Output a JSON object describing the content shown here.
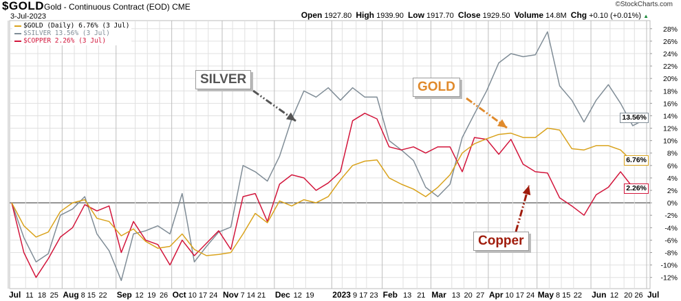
{
  "header": {
    "symbol": "$GOLD",
    "description": "Gold - Continuous Contract (EOD) CME",
    "date": "3-Jul-2023",
    "credit": "©StockCharts.com",
    "open_label": "Open",
    "open": "1927.80",
    "high_label": "High",
    "high": "1939.90",
    "low_label": "Low",
    "low": "1917.70",
    "close_label": "Close",
    "close": "1929.50",
    "volume_label": "Volume",
    "volume": "14.8M",
    "chg_label": "Chg",
    "chg": "+0.10 (+0.01%)",
    "chg_icon": "triangle-up-icon"
  },
  "legend": [
    {
      "text": "$GOLD (Daily) 6.76% (3 Jul)",
      "color": "#d9a21b"
    },
    {
      "text": "$SILVER 13.56% (3 Jul)",
      "color": "#7f8c96"
    },
    {
      "text": "$COPPER 2.26% (3 Jul)",
      "color": "#d2143a"
    }
  ],
  "annotations": {
    "silver": {
      "text": "SILVER",
      "color": "#555555"
    },
    "gold": {
      "text": "GOLD",
      "color": "#e08a2c"
    },
    "copper": {
      "text": "Copper",
      "color": "#a01c0c"
    }
  },
  "chart_data": {
    "type": "line",
    "title": "$GOLD Gold - Continuous Contract (EOD) CME",
    "xlim": [
      "2022-07-03",
      "2023-07-03"
    ],
    "ylim": [
      -13.8,
      29.3
    ],
    "y_axis_position": "right",
    "grid": true,
    "legend_position": "top-left",
    "y_ticks": [
      -12,
      -10,
      -8,
      -6,
      -4,
      -2,
      0,
      2,
      4,
      6,
      8,
      10,
      12,
      14,
      16,
      18,
      20,
      22,
      24,
      26,
      28
    ],
    "y_tick_suffix": "%",
    "x_ticks": [
      {
        "label": "Jul",
        "date": "2022-07-01",
        "major": true
      },
      {
        "label": "11",
        "date": "2022-07-11"
      },
      {
        "label": "18",
        "date": "2022-07-18"
      },
      {
        "label": "25",
        "date": "2022-07-25"
      },
      {
        "label": "Aug",
        "date": "2022-08-01",
        "major": true
      },
      {
        "label": "8",
        "date": "2022-08-08"
      },
      {
        "label": "15",
        "date": "2022-08-15"
      },
      {
        "label": "22",
        "date": "2022-08-22"
      },
      {
        "label": "Sep",
        "date": "2022-09-01",
        "major": true
      },
      {
        "label": "12",
        "date": "2022-09-12"
      },
      {
        "label": "19",
        "date": "2022-09-19"
      },
      {
        "label": "26",
        "date": "2022-09-26"
      },
      {
        "label": "Oct",
        "date": "2022-10-03",
        "major": true
      },
      {
        "label": "10",
        "date": "2022-10-10"
      },
      {
        "label": "17",
        "date": "2022-10-17"
      },
      {
        "label": "24",
        "date": "2022-10-24"
      },
      {
        "label": "Nov",
        "date": "2022-11-01",
        "major": true
      },
      {
        "label": "7",
        "date": "2022-11-07"
      },
      {
        "label": "14",
        "date": "2022-11-14"
      },
      {
        "label": "21",
        "date": "2022-11-21"
      },
      {
        "label": "Dec",
        "date": "2022-12-01",
        "major": true
      },
      {
        "label": "12",
        "date": "2022-12-12"
      },
      {
        "label": "19",
        "date": "2022-12-19"
      },
      {
        "label": "2023",
        "date": "2023-01-03",
        "major": true
      },
      {
        "label": "9",
        "date": "2023-01-09"
      },
      {
        "label": "17",
        "date": "2023-01-17"
      },
      {
        "label": "23",
        "date": "2023-01-23"
      },
      {
        "label": "Feb",
        "date": "2023-02-01",
        "major": true
      },
      {
        "label": "13",
        "date": "2023-02-13"
      },
      {
        "label": "21",
        "date": "2023-02-21"
      },
      {
        "label": "Mar",
        "date": "2023-03-01",
        "major": true
      },
      {
        "label": "13",
        "date": "2023-03-13"
      },
      {
        "label": "20",
        "date": "2023-03-20"
      },
      {
        "label": "27",
        "date": "2023-03-27"
      },
      {
        "label": "Apr",
        "date": "2023-04-03",
        "major": true
      },
      {
        "label": "10",
        "date": "2023-04-10"
      },
      {
        "label": "17",
        "date": "2023-04-17"
      },
      {
        "label": "24",
        "date": "2023-04-24"
      },
      {
        "label": "May",
        "date": "2023-05-01",
        "major": true
      },
      {
        "label": "8",
        "date": "2023-05-08"
      },
      {
        "label": "15",
        "date": "2023-05-15"
      },
      {
        "label": "22",
        "date": "2023-05-22"
      },
      {
        "label": "Jun",
        "date": "2023-06-01",
        "major": true
      },
      {
        "label": "12",
        "date": "2023-06-12"
      },
      {
        "label": "20",
        "date": "2023-06-20"
      },
      {
        "label": "26",
        "date": "2023-06-26"
      },
      {
        "label": "Jul",
        "date": "2023-07-03",
        "major": true
      }
    ],
    "x": [
      "2022-07-03",
      "2022-07-10",
      "2022-07-17",
      "2022-07-24",
      "2022-07-31",
      "2022-08-07",
      "2022-08-14",
      "2022-08-21",
      "2022-08-28",
      "2022-09-04",
      "2022-09-11",
      "2022-09-18",
      "2022-09-25",
      "2022-10-02",
      "2022-10-09",
      "2022-10-16",
      "2022-10-23",
      "2022-10-30",
      "2022-11-06",
      "2022-11-13",
      "2022-11-20",
      "2022-11-27",
      "2022-12-04",
      "2022-12-11",
      "2022-12-18",
      "2022-12-25",
      "2023-01-01",
      "2023-01-08",
      "2023-01-15",
      "2023-01-22",
      "2023-01-29",
      "2023-02-05",
      "2023-02-12",
      "2023-02-19",
      "2023-02-26",
      "2023-03-05",
      "2023-03-12",
      "2023-03-19",
      "2023-03-26",
      "2023-04-02",
      "2023-04-09",
      "2023-04-16",
      "2023-04-23",
      "2023-04-30",
      "2023-05-07",
      "2023-05-14",
      "2023-05-21",
      "2023-05-28",
      "2023-06-04",
      "2023-06-11",
      "2023-06-18",
      "2023-06-25",
      "2023-07-03"
    ],
    "series": [
      {
        "name": "$SILVER",
        "color": "#7f8c96",
        "last_label": "13.56%",
        "values": [
          0,
          -5.6,
          -9.5,
          -8.2,
          -2,
          -1,
          1,
          -5,
          -7.7,
          -12.5,
          -5,
          -4.5,
          -3.7,
          -5,
          1.5,
          -9.5,
          -7,
          -4.7,
          -3.9,
          6,
          5,
          3.5,
          7.5,
          13.5,
          18,
          17,
          18.5,
          16.5,
          18.5,
          17,
          17,
          10,
          8.5,
          6.8,
          2.5,
          1,
          3,
          10.5,
          14.3,
          18,
          22.5,
          24,
          23.5,
          23.8,
          27.5,
          18.8,
          16.5,
          13,
          16.5,
          19,
          16,
          12.4,
          13.56
        ]
      },
      {
        "name": "$GOLD (Daily)",
        "color": "#d9a21b",
        "last_label": "6.76%",
        "values": [
          0,
          -3.7,
          -5.5,
          -4.7,
          -1.4,
          0,
          0.5,
          -2.5,
          -3,
          -5.3,
          -4.2,
          -6.2,
          -7.3,
          -7,
          -5,
          -7.5,
          -8.5,
          -8.3,
          -8,
          -5,
          -1.7,
          -3.2,
          0.3,
          -0.5,
          0.5,
          0,
          1,
          3.7,
          6,
          6.7,
          6.9,
          4,
          3,
          2.2,
          1,
          2.5,
          4.5,
          8,
          9.5,
          10.3,
          11,
          11.2,
          10.5,
          10.5,
          12,
          11.7,
          8.7,
          8.5,
          9.2,
          9.2,
          8.5,
          6.6,
          6.76
        ]
      },
      {
        "name": "$COPPER",
        "color": "#d2143a",
        "last_label": "2.26%",
        "values": [
          0,
          -8,
          -12,
          -9,
          -5.5,
          -4,
          -0.3,
          -1.3,
          -0.5,
          -8,
          -3,
          -6,
          -6.7,
          -10,
          -6,
          -8.5,
          -6.5,
          -4.5,
          -7.5,
          1,
          1.5,
          -3,
          3,
          4.5,
          4,
          2,
          3.2,
          5,
          13.2,
          14.4,
          13.5,
          9,
          8.5,
          9,
          8,
          9,
          9,
          5,
          10.5,
          10.2,
          7.8,
          10.2,
          6.2,
          5,
          4.8,
          0.8,
          -0.5,
          -2,
          1.3,
          2.5,
          5,
          2.5,
          2.26
        ]
      }
    ]
  }
}
